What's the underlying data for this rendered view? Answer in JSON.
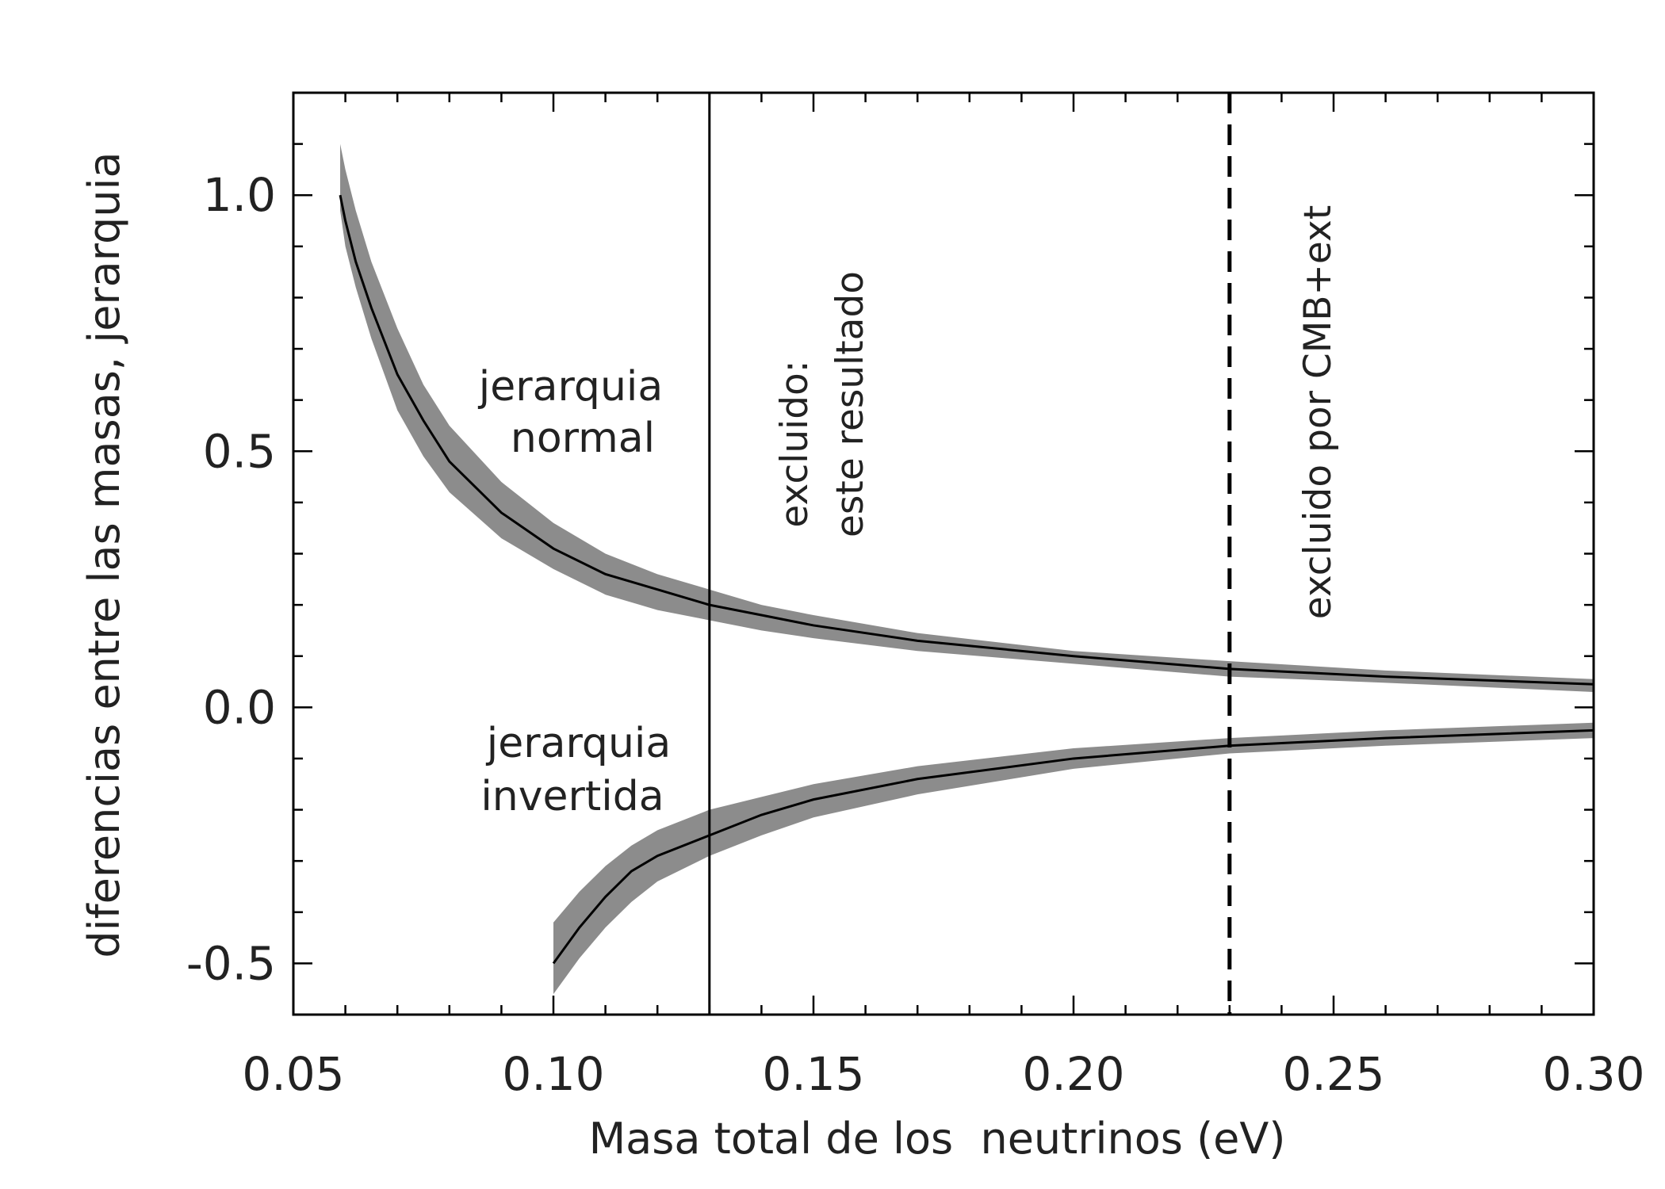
{
  "chart_data": {
    "type": "line",
    "xlabel": "Masa total de los  neutrinos (eV)",
    "ylabel": "diferencias entre las masas, jerarquia",
    "xlim": [
      0.05,
      0.3
    ],
    "ylim": [
      -0.6,
      1.2
    ],
    "x_ticks": [
      "0.05",
      "0.10",
      "0.15",
      "0.20",
      "0.25",
      "0.30"
    ],
    "y_ticks": [
      "-0.5",
      "0.0",
      "0.5",
      "1.0"
    ],
    "grid": false,
    "series": [
      {
        "name": "jerarquia normal",
        "line_color": "#000000",
        "band_color": "#8c8c8c",
        "x": [
          0.059,
          0.06,
          0.062,
          0.065,
          0.07,
          0.075,
          0.08,
          0.09,
          0.1,
          0.11,
          0.12,
          0.13,
          0.14,
          0.15,
          0.17,
          0.2,
          0.23,
          0.26,
          0.3
        ],
        "y": [
          1.0,
          0.95,
          0.87,
          0.78,
          0.65,
          0.56,
          0.48,
          0.38,
          0.31,
          0.26,
          0.23,
          0.2,
          0.18,
          0.16,
          0.13,
          0.1,
          0.075,
          0.06,
          0.045
        ],
        "y_upper": [
          1.1,
          1.05,
          0.97,
          0.87,
          0.74,
          0.63,
          0.55,
          0.44,
          0.36,
          0.3,
          0.26,
          0.23,
          0.2,
          0.18,
          0.145,
          0.11,
          0.09,
          0.072,
          0.055
        ],
        "y_lower": [
          0.97,
          0.9,
          0.82,
          0.72,
          0.58,
          0.49,
          0.42,
          0.33,
          0.27,
          0.22,
          0.19,
          0.17,
          0.15,
          0.135,
          0.11,
          0.085,
          0.06,
          0.048,
          0.03
        ]
      },
      {
        "name": "jerarquia invertida",
        "line_color": "#000000",
        "band_color": "#8c8c8c",
        "x": [
          0.1,
          0.105,
          0.11,
          0.115,
          0.12,
          0.13,
          0.14,
          0.15,
          0.17,
          0.2,
          0.23,
          0.26,
          0.3
        ],
        "y": [
          -0.5,
          -0.43,
          -0.37,
          -0.32,
          -0.29,
          -0.25,
          -0.21,
          -0.18,
          -0.14,
          -0.1,
          -0.075,
          -0.06,
          -0.045
        ],
        "y_upper": [
          -0.42,
          -0.36,
          -0.31,
          -0.27,
          -0.24,
          -0.2,
          -0.175,
          -0.15,
          -0.115,
          -0.08,
          -0.06,
          -0.045,
          -0.03
        ],
        "y_lower": [
          -0.56,
          -0.49,
          -0.43,
          -0.38,
          -0.34,
          -0.29,
          -0.25,
          -0.215,
          -0.17,
          -0.12,
          -0.09,
          -0.075,
          -0.06
        ]
      }
    ],
    "vlines": [
      {
        "x": 0.13,
        "style": "solid"
      },
      {
        "x": 0.23,
        "style": "dashed"
      }
    ],
    "annotations": {
      "normal": [
        "jerarquia",
        "normal"
      ],
      "inverted": [
        "jerarquia",
        "invertida"
      ],
      "excluded_this": [
        "excluido:",
        "este resultado"
      ],
      "excluded_cmb": "excluido por CMB+ext"
    }
  }
}
